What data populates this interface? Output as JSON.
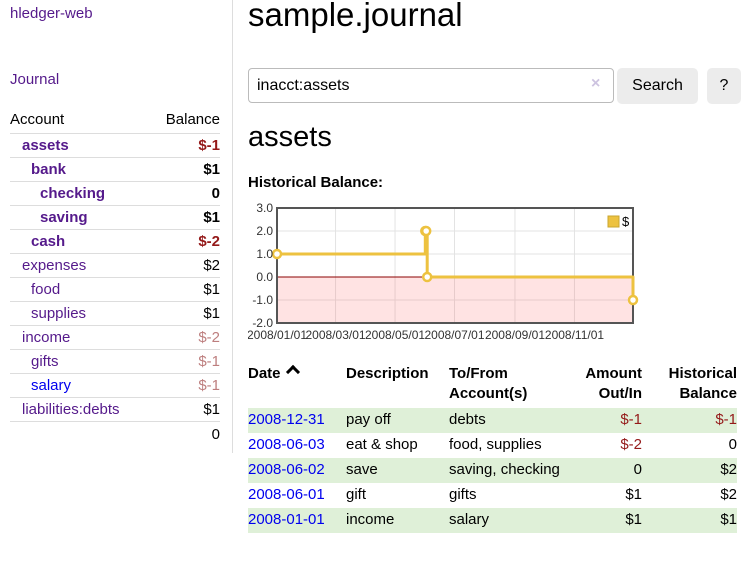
{
  "app": {
    "title": "hledger-web",
    "nav_journal": "Journal"
  },
  "sidebar": {
    "accounts_header": {
      "account": "Account",
      "balance": "Balance"
    },
    "accounts": [
      {
        "name": "assets",
        "indent": 1,
        "bold": true,
        "balance": "$-1",
        "balance_style": "neg-strong"
      },
      {
        "name": "bank",
        "indent": 2,
        "bold": true,
        "balance": "$1",
        "balance_style": "pos"
      },
      {
        "name": "checking",
        "indent": 3,
        "bold": true,
        "balance": "0",
        "balance_style": "pos"
      },
      {
        "name": "saving",
        "indent": 3,
        "bold": true,
        "balance": "$1",
        "balance_style": "pos"
      },
      {
        "name": "cash",
        "indent": 2,
        "bold": true,
        "balance": "$-2",
        "balance_style": "neg-strong"
      },
      {
        "name": "expenses",
        "indent": 1,
        "bold": false,
        "balance": "$2",
        "balance_style": "pos"
      },
      {
        "name": "food",
        "indent": 2,
        "bold": false,
        "balance": "$1",
        "balance_style": "pos"
      },
      {
        "name": "supplies",
        "indent": 2,
        "bold": false,
        "balance": "$1",
        "balance_style": "pos"
      },
      {
        "name": "income",
        "indent": 1,
        "bold": false,
        "balance": "$-2",
        "balance_style": "neg-soft"
      },
      {
        "name": "gifts",
        "indent": 2,
        "bold": false,
        "balance": "$-1",
        "balance_style": "neg-soft"
      },
      {
        "name": "salary",
        "indent": 2,
        "bold": false,
        "balance": "$-1",
        "balance_style": "neg-soft",
        "link_color": "blue"
      },
      {
        "name": "liabilities:debts",
        "indent": 1,
        "bold": false,
        "balance": "$1",
        "balance_style": "pos"
      }
    ],
    "total": "0"
  },
  "main": {
    "journal_title": "sample.journal",
    "search": {
      "value": "inacct:assets",
      "clear_icon": "×",
      "button": "Search",
      "help_button": "?"
    },
    "account_title": "assets",
    "chart_label": "Historical Balance:"
  },
  "chart_data": {
    "type": "line",
    "step": true,
    "title": "Historical Balance",
    "x_range": [
      "2008-01-01",
      "2008-12-31"
    ],
    "ylim": [
      -2,
      3
    ],
    "y_ticks": [
      {
        "value": 3,
        "label": "3.0"
      },
      {
        "value": 2,
        "label": "2.0"
      },
      {
        "value": 1,
        "label": "1.0"
      },
      {
        "value": 0,
        "label": "0.0"
      },
      {
        "value": -1,
        "label": "-1.0"
      },
      {
        "value": -2,
        "label": "-2.0"
      }
    ],
    "x_ticks": [
      {
        "date": "2008-01-01",
        "label": "2008/01/01"
      },
      {
        "date": "2008-03-01",
        "label": "2008/03/01"
      },
      {
        "date": "2008-05-01",
        "label": "2008/05/01"
      },
      {
        "date": "2008-07-01",
        "label": "2008/07/01"
      },
      {
        "date": "2008-09-01",
        "label": "2008/09/01"
      },
      {
        "date": "2008-11-01",
        "label": "2008/11/01"
      }
    ],
    "series": [
      {
        "name": "$",
        "color": "#edc240",
        "points": [
          [
            "2008-01-01",
            1
          ],
          [
            "2008-06-01",
            2
          ],
          [
            "2008-06-02",
            2
          ],
          [
            "2008-06-03",
            0
          ],
          [
            "2008-12-31",
            -1
          ]
        ]
      }
    ],
    "legend_position": "top-right",
    "grid": true,
    "colors": {
      "grid": "#e3e3e3",
      "border": "#555555",
      "zero_line": "#8b0000",
      "negative_region": "rgba(255,80,80,0.16)",
      "marker_fill": "#ffffff"
    }
  },
  "register": {
    "columns": [
      {
        "label": "Date",
        "align": "left",
        "sorted": "asc"
      },
      {
        "label": "Description",
        "align": "left"
      },
      {
        "label": "To/From Account(s)",
        "align": "left"
      },
      {
        "label": "Amount Out/In",
        "align": "right"
      },
      {
        "label": "Historical Balance",
        "align": "right"
      }
    ],
    "rows": [
      {
        "date": "2008-12-31",
        "description": "pay off",
        "accounts": "debts",
        "amount": "$-1",
        "amount_neg": true,
        "balance": "$-1",
        "balance_neg": true,
        "shaded": true
      },
      {
        "date": "2008-06-03",
        "description": "eat & shop",
        "accounts": "food, supplies",
        "amount": "$-2",
        "amount_neg": true,
        "balance": "0",
        "balance_neg": false,
        "shaded": false
      },
      {
        "date": "2008-06-02",
        "description": "save",
        "accounts": "saving, checking",
        "amount": "0",
        "amount_neg": false,
        "balance": "$2",
        "balance_neg": false,
        "shaded": true
      },
      {
        "date": "2008-06-01",
        "description": "gift",
        "accounts": "gifts",
        "amount": "$1",
        "amount_neg": false,
        "balance": "$2",
        "balance_neg": false,
        "shaded": false
      },
      {
        "date": "2008-01-01",
        "description": "income",
        "accounts": "salary",
        "amount": "$1",
        "amount_neg": false,
        "balance": "$1",
        "balance_neg": false,
        "shaded": true
      }
    ]
  },
  "colors": {
    "link_purple": "#551a8b",
    "link_blue": "#0000ee",
    "negative_strong": "#941919",
    "negative_soft": "#bd7e7e",
    "row_green": "#dff0d8",
    "button_bg": "#ececec",
    "accent_gold": "#edc240"
  }
}
